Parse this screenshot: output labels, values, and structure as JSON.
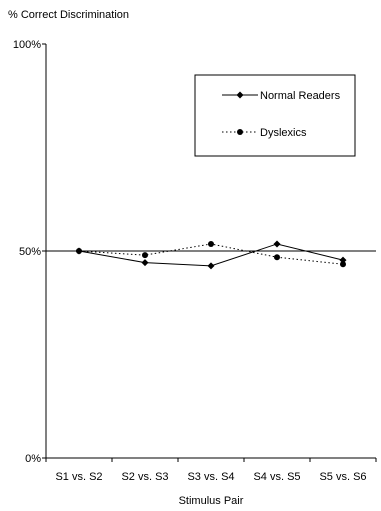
{
  "chart_data": {
    "type": "line",
    "title": "",
    "ylabel": "% Correct Discrimination",
    "xlabel": "Stimulus Pair",
    "categories": [
      "S1 vs. S2",
      "S2 vs. S3",
      "S3 vs. S4",
      "S4 vs. S5",
      "S5 vs. S6"
    ],
    "ylim": [
      0,
      100
    ],
    "yticks": [
      0,
      50,
      100
    ],
    "ytick_labels": [
      "0%",
      "50%",
      "100%"
    ],
    "reference_line": 50,
    "grid": false,
    "legend_position": "top-right",
    "series": [
      {
        "name": "Normal Readers",
        "values": [
          50,
          47.2,
          46.4,
          51.7,
          47.8
        ],
        "marker": "diamond",
        "line": "solid",
        "color": "#000000"
      },
      {
        "name": "Dyslexics",
        "values": [
          50,
          49,
          51.7,
          48.5,
          46.8
        ],
        "marker": "circle",
        "line": "dotted",
        "color": "#000000"
      }
    ]
  }
}
